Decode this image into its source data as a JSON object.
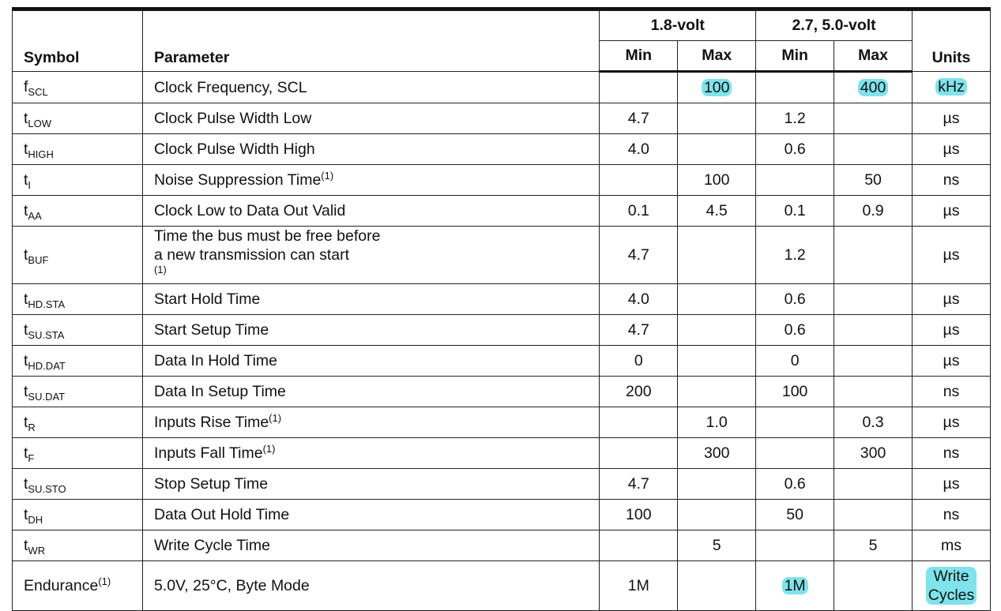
{
  "headers": {
    "symbol": "Symbol",
    "parameter": "Parameter",
    "group_1": "1.8-volt",
    "group_2": "2.7, 5.0-volt",
    "min_1": "Min",
    "max_1": "Max",
    "min_2": "Min",
    "max_2": "Max",
    "units": "Units"
  },
  "rows": [
    {
      "sym_main": "f",
      "sym_sub": "SCL",
      "param": "Clock Frequency, SCL",
      "param_sup": "",
      "min18": "",
      "max18": "100",
      "min27": "",
      "max27": "400",
      "units": "kHz"
    },
    {
      "sym_main": "t",
      "sym_sub": "LOW",
      "param": "Clock Pulse Width Low",
      "param_sup": "",
      "min18": "4.7",
      "max18": "",
      "min27": "1.2",
      "max27": "",
      "units": "µs"
    },
    {
      "sym_main": "t",
      "sym_sub": "HIGH",
      "param": "Clock Pulse Width High",
      "param_sup": "",
      "min18": "4.0",
      "max18": "",
      "min27": "0.6",
      "max27": "",
      "units": "µs"
    },
    {
      "sym_main": "t",
      "sym_sub": "I",
      "param": "Noise Suppression Time",
      "param_sup": "(1)",
      "min18": "",
      "max18": "100",
      "min27": "",
      "max27": "50",
      "units": "ns"
    },
    {
      "sym_main": "t",
      "sym_sub": "AA",
      "param": "Clock Low to Data Out Valid",
      "param_sup": "",
      "min18": "0.1",
      "max18": "4.5",
      "min27": "0.1",
      "max27": "0.9",
      "units": "µs"
    },
    {
      "sym_main": "t",
      "sym_sub": "BUF",
      "param_line1": "Time the bus must be free before",
      "param_line2": "a new transmission can start",
      "param_sup": "(1)",
      "min18": "4.7",
      "max18": "",
      "min27": "1.2",
      "max27": "",
      "units": "µs"
    },
    {
      "sym_main": "t",
      "sym_sub": "HD.STA",
      "param": "Start Hold Time",
      "param_sup": "",
      "min18": "4.0",
      "max18": "",
      "min27": "0.6",
      "max27": "",
      "units": "µs"
    },
    {
      "sym_main": "t",
      "sym_sub": "SU.STA",
      "param": "Start Setup Time",
      "param_sup": "",
      "min18": "4.7",
      "max18": "",
      "min27": "0.6",
      "max27": "",
      "units": "µs"
    },
    {
      "sym_main": "t",
      "sym_sub": "HD.DAT",
      "param": "Data In Hold Time",
      "param_sup": "",
      "min18": "0",
      "max18": "",
      "min27": "0",
      "max27": "",
      "units": "µs"
    },
    {
      "sym_main": "t",
      "sym_sub": "SU.DAT",
      "param": "Data In Setup Time",
      "param_sup": "",
      "min18": "200",
      "max18": "",
      "min27": "100",
      "max27": "",
      "units": "ns"
    },
    {
      "sym_main": "t",
      "sym_sub": "R",
      "param": "Inputs Rise Time",
      "param_sup": "(1)",
      "min18": "",
      "max18": "1.0",
      "min27": "",
      "max27": "0.3",
      "units": "µs"
    },
    {
      "sym_main": "t",
      "sym_sub": "F",
      "param": "Inputs Fall Time",
      "param_sup": "(1)",
      "min18": "",
      "max18": "300",
      "min27": "",
      "max27": "300",
      "units": "ns"
    },
    {
      "sym_main": "t",
      "sym_sub": "SU.STO",
      "param": "Stop Setup Time",
      "param_sup": "",
      "min18": "4.7",
      "max18": "",
      "min27": "0.6",
      "max27": "",
      "units": "µs"
    },
    {
      "sym_main": "t",
      "sym_sub": "DH",
      "param": "Data Out Hold Time",
      "param_sup": "",
      "min18": "100",
      "max18": "",
      "min27": "50",
      "max27": "",
      "units": "ns"
    },
    {
      "sym_main": "t",
      "sym_sub": "WR",
      "param": "Write Cycle Time",
      "param_sup": "",
      "min18": "",
      "max18": "5",
      "min27": "",
      "max27": "5",
      "units": "ms"
    },
    {
      "sym_main": "Endurance",
      "sym_sup": "(1)",
      "param": "5.0V, 25°C, Byte Mode",
      "param_sup": "",
      "min18": "1M",
      "max18": "",
      "min27": "1M",
      "max27": "",
      "units_line1": "Write",
      "units_line2": "Cycles"
    }
  ],
  "highlight_color": "#7fe3ec"
}
